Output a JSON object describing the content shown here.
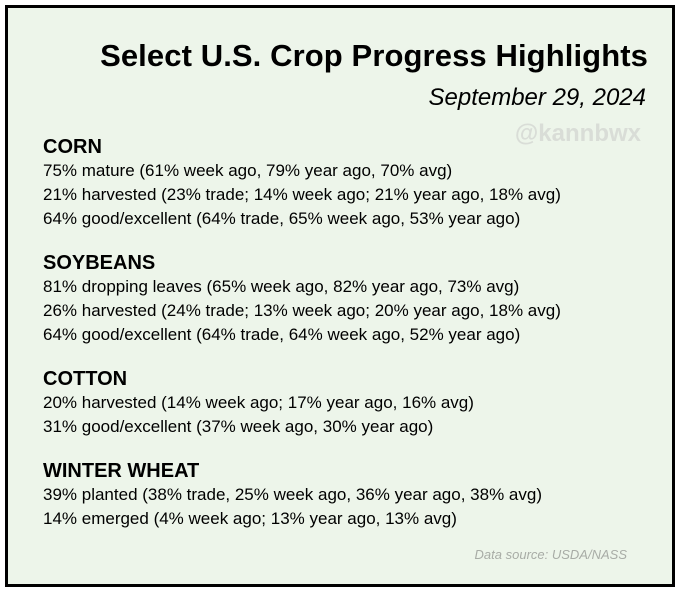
{
  "header": {
    "title": "Select U.S. Crop Progress Highlights",
    "date": "September 29, 2024",
    "watermark": "@kannbwx"
  },
  "sections": [
    {
      "heading": "CORN",
      "lines": [
        "75% mature (61% week ago, 79% year ago, 70% avg)",
        "21% harvested (23% trade; 14% week ago; 21% year ago, 18% avg)",
        "64% good/excellent (64% trade, 65% week ago, 53% year ago)"
      ]
    },
    {
      "heading": "SOYBEANS",
      "lines": [
        "81% dropping leaves (65% week ago, 82% year ago, 73% avg)",
        "26% harvested (24% trade; 13% week ago; 20% year ago, 18% avg)",
        "64% good/excellent (64% trade, 64% week ago, 52% year ago)"
      ]
    },
    {
      "heading": "COTTON",
      "lines": [
        "20% harvested (14% week ago; 17% year ago, 16% avg)",
        "31% good/excellent (37% week ago, 30% year ago)"
      ]
    },
    {
      "heading": "WINTER WHEAT",
      "lines": [
        "39% planted (38% trade, 25% week ago, 36% year ago, 38% avg)",
        "14% emerged (4% week ago; 13% year ago, 13% avg)"
      ]
    }
  ],
  "footer": {
    "source": "Data source: USDA/NASS"
  },
  "colors": {
    "background": "#edf5ea",
    "border": "#000000",
    "watermark": "#d9ddd7",
    "source_text": "#a8aca6"
  }
}
